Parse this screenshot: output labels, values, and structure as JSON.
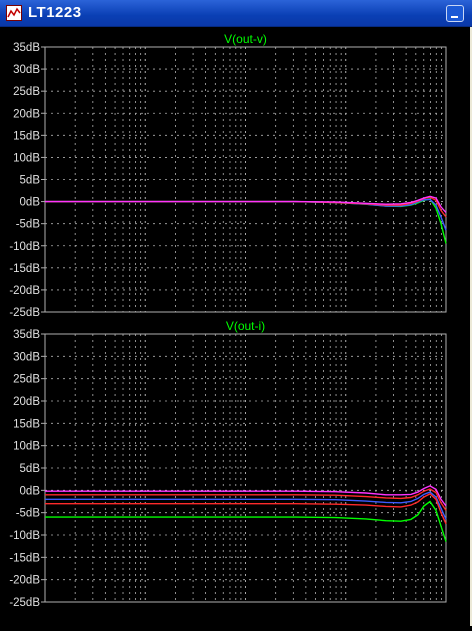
{
  "window": {
    "title": "LT1223"
  },
  "colors": {
    "background": "#000000",
    "grid": "#b0b0b0",
    "axis_text": "#e0e0e0",
    "title_text": "#00ff00",
    "trace_magenta": "#ff33ff",
    "trace_red": "#ff2a2a",
    "trace_blue": "#3d5bff",
    "trace_green": "#00ff00"
  },
  "chart_data": [
    {
      "type": "line",
      "title": "V(out-v)",
      "ylim": [
        -25,
        35
      ],
      "yticks": [
        "35dB",
        "30dB",
        "25dB",
        "20dB",
        "15dB",
        "10dB",
        "5dB",
        "0dB",
        "-5dB",
        "-10dB",
        "-15dB",
        "-20dB",
        "-25dB"
      ],
      "x_log_decades": 4,
      "x": [
        0,
        0.5,
        1,
        1.5,
        2,
        2.5,
        2.9,
        3.2,
        3.4,
        3.55,
        3.65,
        3.72,
        3.78,
        3.84,
        3.9,
        3.95,
        4.0
      ],
      "series": [
        {
          "color": "#00ff00",
          "values": [
            0,
            0,
            0,
            0,
            0,
            0,
            -0.2,
            -0.6,
            -1.0,
            -1.1,
            -0.8,
            -0.3,
            0.3,
            0.6,
            -1.5,
            -5,
            -9.5
          ]
        },
        {
          "color": "#3d5bff",
          "values": [
            0,
            0,
            0,
            0,
            0,
            0,
            -0.2,
            -0.6,
            -1.0,
            -1.0,
            -0.7,
            -0.1,
            0.4,
            0.5,
            -0.8,
            -3.5,
            -6.5
          ]
        },
        {
          "color": "#ff2a2a",
          "values": [
            0,
            0,
            0,
            0,
            0,
            0,
            -0.2,
            -0.5,
            -0.8,
            -0.8,
            -0.4,
            0.1,
            0.7,
            1.0,
            0.3,
            -2.0,
            -3.5
          ]
        },
        {
          "color": "#ff33ff",
          "values": [
            0,
            0,
            0,
            0,
            0,
            0,
            -0.1,
            -0.4,
            -0.6,
            -0.5,
            -0.2,
            0.3,
            0.8,
            1.2,
            0.8,
            -1.2,
            -2.5
          ]
        }
      ]
    },
    {
      "type": "line",
      "title": "V(out-i)",
      "ylim": [
        -25,
        35
      ],
      "yticks": [
        "35dB",
        "30dB",
        "25dB",
        "20dB",
        "15dB",
        "10dB",
        "5dB",
        "0dB",
        "-5dB",
        "-10dB",
        "-15dB",
        "-20dB",
        "-25dB"
      ],
      "x_log_decades": 4,
      "x": [
        0,
        0.5,
        1,
        1.5,
        2,
        2.5,
        2.9,
        3.2,
        3.4,
        3.55,
        3.65,
        3.72,
        3.78,
        3.84,
        3.9,
        3.95,
        4.0
      ],
      "series": [
        {
          "color": "#ff33ff",
          "values": [
            -0.2,
            -0.2,
            -0.2,
            -0.2,
            -0.2,
            -0.2,
            -0.3,
            -0.6,
            -1.0,
            -1.0,
            -0.9,
            -0.4,
            0.4,
            1.0,
            0.2,
            -2.0,
            -3.5
          ]
        },
        {
          "color": "#ff2a2a",
          "values": [
            -1.0,
            -1.0,
            -1.0,
            -1.0,
            -1.0,
            -1.0,
            -1.1,
            -1.4,
            -1.7,
            -1.8,
            -1.6,
            -1.0,
            -0.2,
            0.3,
            -0.5,
            -2.8,
            -4.5
          ]
        },
        {
          "color": "#3d5bff",
          "values": [
            -2.0,
            -2.0,
            -2.0,
            -2.0,
            -2.0,
            -2.0,
            -2.1,
            -2.4,
            -2.7,
            -2.8,
            -2.5,
            -1.8,
            -0.9,
            -0.4,
            -1.5,
            -4.0,
            -6.5
          ]
        },
        {
          "color": "#ff2a2a",
          "values": [
            -3.0,
            -3.0,
            -3.0,
            -3.0,
            -3.0,
            -3.0,
            -3.1,
            -3.3,
            -3.6,
            -3.7,
            -3.3,
            -2.6,
            -1.5,
            -0.8,
            -2.0,
            -5.0,
            -7.5
          ]
        },
        {
          "color": "#00ff00",
          "values": [
            -6.0,
            -6.0,
            -6.0,
            -6.0,
            -6.0,
            -6.0,
            -6.1,
            -6.4,
            -6.8,
            -6.9,
            -6.5,
            -5.5,
            -3.5,
            -2.5,
            -4.5,
            -8.0,
            -11.5
          ]
        }
      ]
    }
  ]
}
